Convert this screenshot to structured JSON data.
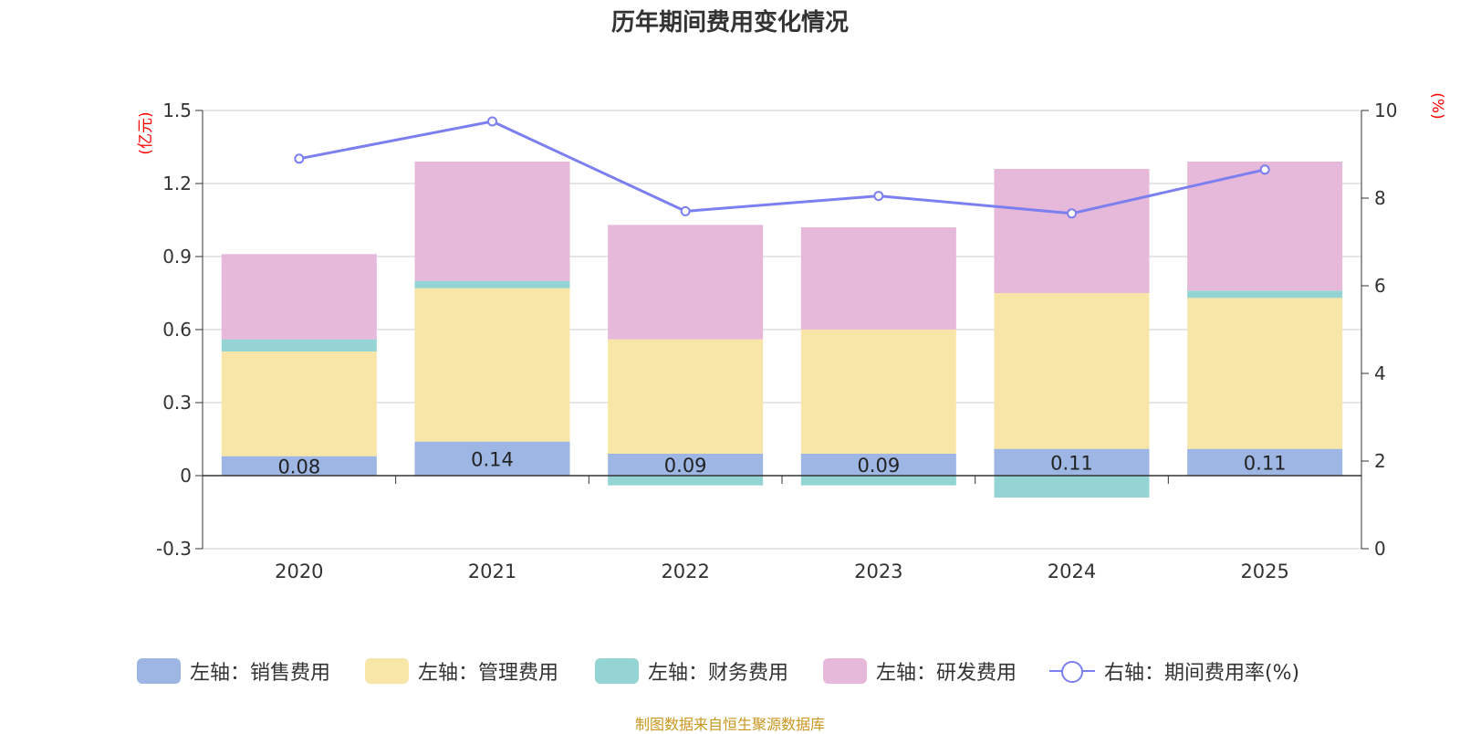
{
  "chart_data": {
    "type": "bar",
    "title": "历年期间费用变化情况",
    "categories": [
      "2020",
      "2021",
      "2022",
      "2023",
      "2024",
      "2025"
    ],
    "series": [
      {
        "name": "左轴：销售费用",
        "axis": "left",
        "stack": "cost",
        "color": "#9db6e3",
        "values": [
          0.08,
          0.14,
          0.09,
          0.09,
          0.11,
          0.11
        ],
        "labels": [
          "0.08",
          "0.14",
          "0.09",
          "0.09",
          "0.11",
          "0.11"
        ]
      },
      {
        "name": "左轴：管理费用",
        "axis": "left",
        "stack": "cost",
        "color": "#f8e6a8",
        "values": [
          0.43,
          0.63,
          0.47,
          0.51,
          0.64,
          0.62
        ]
      },
      {
        "name": "左轴：财务费用",
        "axis": "left",
        "stack": "cost",
        "color": "#95d4d4",
        "values": [
          0.05,
          0.03,
          -0.04,
          -0.04,
          -0.09,
          0.03
        ]
      },
      {
        "name": "左轴：研发费用",
        "axis": "left",
        "stack": "cost",
        "color": "#e6b8d9",
        "values": [
          0.35,
          0.49,
          0.47,
          0.42,
          0.51,
          0.53
        ]
      },
      {
        "name": "右轴：期间费用率(%)",
        "axis": "right",
        "type": "line",
        "color": "#7b7ff0",
        "values": [
          8.9,
          9.75,
          7.7,
          8.05,
          7.65,
          8.65
        ]
      }
    ],
    "y_left": {
      "label": "(亿元)",
      "min": -0.3,
      "max": 1.5,
      "ticks": [
        -0.3,
        0,
        0.3,
        0.6,
        0.9,
        1.2,
        1.5
      ],
      "tick_labels": [
        "-0.3",
        "0",
        "0.3",
        "0.6",
        "0.9",
        "1.2",
        "1.5"
      ]
    },
    "y_right": {
      "label": "(%)",
      "min": 0,
      "max": 10,
      "ticks": [
        0,
        2,
        4,
        6,
        8,
        10
      ],
      "tick_labels": [
        "0",
        "2",
        "4",
        "6",
        "8",
        "10"
      ]
    },
    "grid": true,
    "legend_position": "bottom",
    "source": "制图数据来自恒生聚源数据库",
    "axis_label_color": "#ff0000"
  }
}
